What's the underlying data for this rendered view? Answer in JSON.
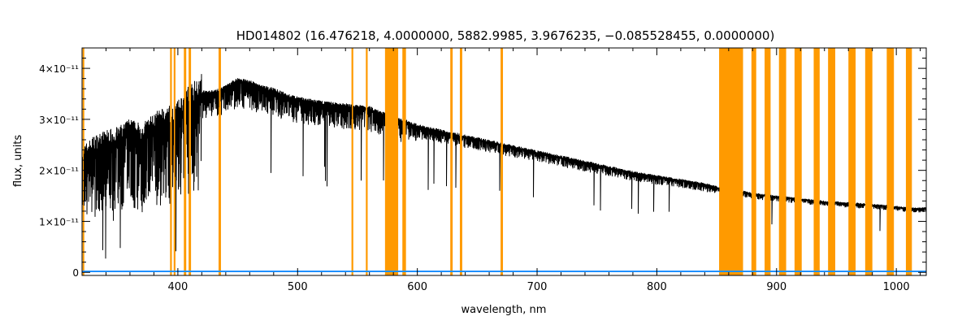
{
  "chart_data": {
    "type": "line",
    "title": "HD014802    (16.476218, 4.0000000, 5882.9985, 3.9676235, −0.085528455, 0.0000000)",
    "xlabel": "wavelength, nm",
    "ylabel": "flux, units",
    "xlim": [
      320,
      1025
    ],
    "ylim": [
      -6e-13,
      4.4e-11
    ],
    "x_ticks": [
      400,
      500,
      600,
      700,
      800,
      900,
      1000
    ],
    "y_ticks": [
      {
        "value": 0,
        "label": "0"
      },
      {
        "value": 1e-11,
        "label": "1×10⁻¹¹"
      },
      {
        "value": 2e-11,
        "label": "2×10⁻¹¹"
      },
      {
        "value": 3e-11,
        "label": "3×10⁻¹¹"
      },
      {
        "value": 4e-11,
        "label": "4×10⁻¹¹"
      }
    ],
    "grid": false,
    "colors": {
      "spectrum": "#000000",
      "error": "#1e90ff",
      "mask": "#ff9a00"
    },
    "series": [
      {
        "role": "flux",
        "x": [
          320,
          330,
          340,
          350,
          360,
          370,
          380,
          390,
          400,
          410,
          420,
          430,
          440,
          450,
          460,
          470,
          480,
          490,
          500,
          520,
          540,
          560,
          570,
          580,
          590,
          600,
          620,
          640,
          660,
          680,
          700,
          720,
          740,
          760,
          780,
          800,
          820,
          840,
          852,
          870,
          880,
          900,
          920,
          940,
          960,
          980,
          1000,
          1010,
          1025
        ],
        "y": [
          2.2e-11,
          2.4e-11,
          2.5e-11,
          2.55e-11,
          2.7e-11,
          2.6e-11,
          2.8e-11,
          2.9e-11,
          3e-11,
          3.3e-11,
          3.5e-11,
          3.5e-11,
          3.6e-11,
          3.75e-11,
          3.7e-11,
          3.6e-11,
          3.55e-11,
          3.45e-11,
          3.38e-11,
          3.3e-11,
          3.25e-11,
          3.2e-11,
          3.1e-11,
          3e-11,
          2.95e-11,
          2.85e-11,
          2.75e-11,
          2.65e-11,
          2.55e-11,
          2.45e-11,
          2.35e-11,
          2.25e-11,
          2.15e-11,
          2.05e-11,
          1.95e-11,
          1.87e-11,
          1.8e-11,
          1.72e-11,
          1.65e-11,
          1.58e-11,
          1.53e-11,
          1.48e-11,
          1.43e-11,
          1.38e-11,
          1.35e-11,
          1.32e-11,
          1.28e-11,
          1.25e-11,
          1.25e-11
        ]
      },
      {
        "role": "error",
        "x": [
          320,
          1025
        ],
        "y": [
          2e-13,
          2e-13
        ]
      }
    ],
    "masked_regions": [
      [
        320.5,
        321.5
      ],
      [
        393.5,
        395
      ],
      [
        396.5,
        398
      ],
      [
        405,
        407
      ],
      [
        409,
        411
      ],
      [
        434,
        436
      ],
      [
        545,
        546.5
      ],
      [
        557,
        558.5
      ],
      [
        573,
        584
      ],
      [
        587.5,
        590.5
      ],
      [
        627.5,
        629.5
      ],
      [
        635.5,
        637.5
      ],
      [
        669.5,
        671.5
      ],
      [
        852,
        872
      ],
      [
        879,
        883
      ],
      [
        890,
        895
      ],
      [
        902,
        908
      ],
      [
        915,
        921
      ],
      [
        931,
        936
      ],
      [
        943,
        949
      ],
      [
        960,
        966
      ],
      [
        974,
        980
      ],
      [
        992,
        998
      ],
      [
        1008,
        1013
      ]
    ]
  }
}
